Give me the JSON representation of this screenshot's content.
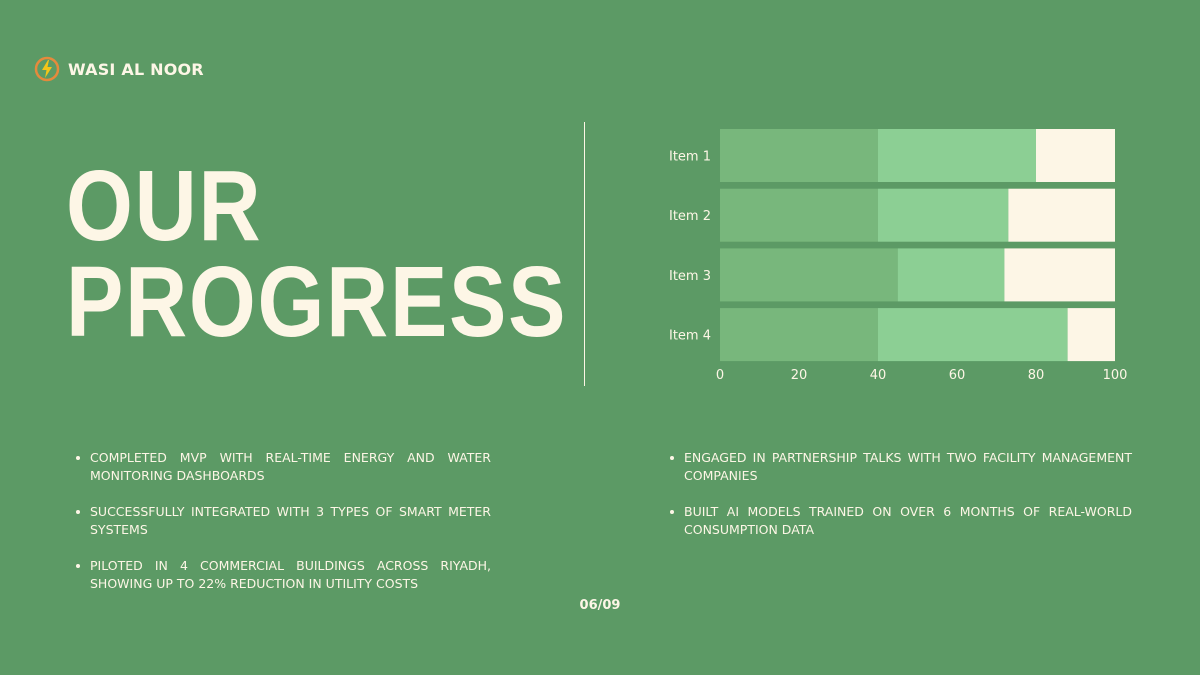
{
  "brand": {
    "name": "WASI AL NOOR",
    "icon": "lightning-bolt-icon"
  },
  "title": {
    "line1": "OUR",
    "line2": "PROGRESS"
  },
  "bullets_left": [
    "Completed MVP with real-time energy and water monitoring dashboards",
    "Successfully integrated with 3 types of smart meter systems",
    "Piloted in 4 commercial buildings across Riyadh, showing up to 22% reduction in utility costs"
  ],
  "bullets_right": [
    "Engaged in partnership talks with two facility management companies",
    "Built AI models trained on over 6 months of real-world consumption data"
  ],
  "page_number": "06/09",
  "colors": {
    "background": "#5c9a65",
    "text": "#fdf6e6"
  },
  "chart_data": {
    "type": "bar",
    "orientation": "horizontal",
    "stacked": true,
    "categories": [
      "Item 1",
      "Item 2",
      "Item 3",
      "Item 4"
    ],
    "series": [
      {
        "values": [
          40,
          40,
          45,
          40
        ],
        "color": "#78b77c"
      },
      {
        "values": [
          40,
          33,
          27,
          48
        ],
        "color": "#8ccf94"
      },
      {
        "values": [
          20,
          27,
          28,
          12
        ],
        "color": "#fdf6e6"
      }
    ],
    "xlim": [
      0,
      100
    ],
    "xticks": [
      "0",
      "20",
      "40",
      "60",
      "80",
      "100"
    ],
    "grid": false,
    "legend": "none"
  }
}
